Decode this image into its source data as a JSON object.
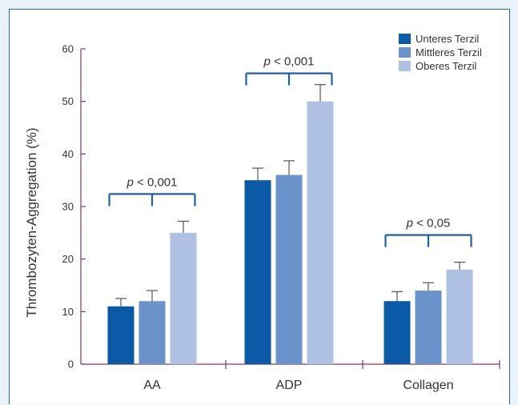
{
  "chart_data": {
    "type": "bar",
    "title": "",
    "xlabel": "",
    "ylabel": "Thrombozyten-Aggregation (%)",
    "ylim": [
      0,
      60
    ],
    "yticks": [
      0,
      10,
      20,
      30,
      40,
      50,
      60
    ],
    "categories": [
      "AA",
      "ADP",
      "Collagen"
    ],
    "series": [
      {
        "name": "Unteres Terzil",
        "color": "#0a5aa8",
        "values": [
          11,
          35,
          12
        ],
        "errors": [
          1.5,
          2.3,
          1.8
        ]
      },
      {
        "name": "Mittleres Terzil",
        "color": "#6a93cb",
        "values": [
          12,
          36,
          14
        ],
        "errors": [
          2.0,
          2.7,
          1.5
        ]
      },
      {
        "name": "Oberes Terzil",
        "color": "#aec1e3",
        "values": [
          25,
          50,
          18
        ],
        "errors": [
          2.2,
          3.2,
          1.4
        ]
      }
    ],
    "legend_position": "top-right",
    "grid": false,
    "significance": [
      {
        "category": "AA",
        "p_label": "p",
        "comparison": "< 0,001"
      },
      {
        "category": "ADP",
        "p_label": "p",
        "comparison": "< 0,001"
      },
      {
        "category": "Collagen",
        "p_label": "p",
        "comparison": "< 0,05"
      }
    ],
    "colors": {
      "axis": "#7a3a6a",
      "bracket": "#1d5fae",
      "frame": "#2c67b1"
    }
  }
}
